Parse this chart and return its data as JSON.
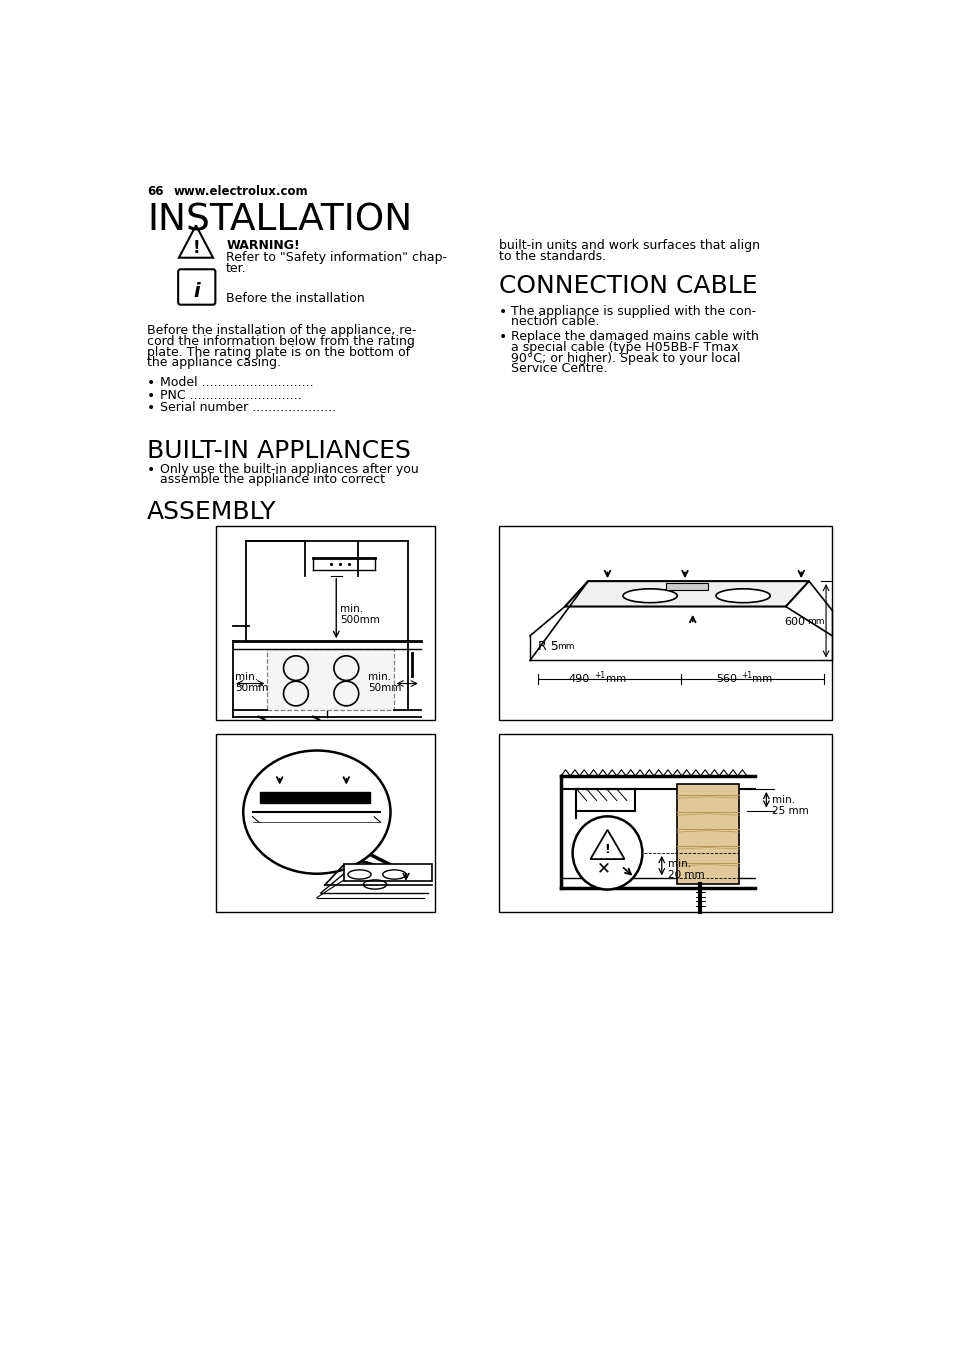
{
  "page_number": "66",
  "website": "www.electrolux.com",
  "title": "INSTALLATION",
  "warning_title": "WARNING!",
  "warning_text1": "Refer to \"Safety information\" chap-",
  "warning_text2": "ter.",
  "info_text": "Before the installation",
  "intro_lines": [
    "Before the installation of the appliance, re-",
    "cord the information below from the rating",
    "plate. The rating plate is on the bottom of",
    "the appliance casing."
  ],
  "bullet_items_left": [
    "Model ............................",
    "PNC ............................",
    "Serial number ....................."
  ],
  "right_text_top1": "built-in units and work surfaces that align",
  "right_text_top2": "to the standards.",
  "section2_title": "CONNECTION CABLE",
  "cable_bullet1_lines": [
    "The appliance is supplied with the con-",
    "nection cable."
  ],
  "cable_bullet2_lines": [
    "Replace the damaged mains cable with",
    "a special cable (type H05BB-F Tmax",
    "90°C; or higher). Speak to your local",
    "Service Centre."
  ],
  "section3_title": "BUILT-IN APPLIANCES",
  "builtin_bullet_lines": [
    "Only use the built-in appliances after you",
    "assemble the appliance into correct"
  ],
  "section4_title": "ASSEMBLY",
  "bg_color": "#ffffff",
  "text_color": "#000000"
}
